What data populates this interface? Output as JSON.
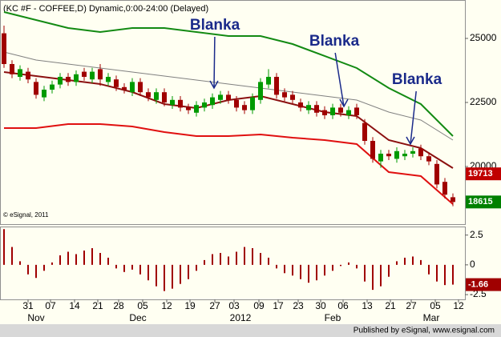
{
  "chart_data": [
    {
      "type": "candlestick",
      "title": "(KC #F - COFFEE,D) Dynamic,0:00-24:00 (Delayed)",
      "watermark": "© eSignal, 2011",
      "x": [
        0,
        1,
        2,
        3,
        4,
        5,
        6,
        7,
        8,
        9,
        10,
        11,
        12,
        13,
        14,
        15,
        16,
        17,
        18,
        19,
        20,
        21,
        22,
        23,
        24,
        25,
        26,
        27,
        28,
        29,
        30,
        31,
        32,
        33,
        34,
        35,
        36,
        37,
        38,
        39,
        40,
        41,
        42,
        43,
        44,
        45,
        46,
        47,
        48,
        49,
        50,
        51,
        52,
        53,
        54,
        55,
        56
      ],
      "open": [
        25200,
        24000,
        23500,
        23700,
        23300,
        22700,
        23000,
        23200,
        23500,
        23300,
        23700,
        23400,
        23800,
        23300,
        23400,
        23100,
        22900,
        23300,
        22900,
        22600,
        22900,
        22400,
        22600,
        22300,
        22100,
        22300,
        22400,
        22600,
        22800,
        22600,
        22400,
        22200,
        22600,
        23200,
        23500,
        22900,
        22800,
        22500,
        22200,
        22400,
        22200,
        22000,
        22300,
        22000,
        22300,
        21700,
        21000,
        20200,
        20500,
        20300,
        20400,
        20500,
        20700,
        20400,
        20100,
        19400,
        18800
      ],
      "high": [
        25500,
        24150,
        23950,
        23850,
        23450,
        23150,
        23350,
        23650,
        23650,
        23750,
        23850,
        23850,
        24000,
        23650,
        23550,
        23250,
        23450,
        23450,
        23050,
        23050,
        23050,
        22750,
        22750,
        22450,
        22550,
        22650,
        22850,
        22950,
        22950,
        22750,
        22550,
        22850,
        23450,
        23800,
        23650,
        23050,
        22950,
        22650,
        22550,
        22550,
        22350,
        22450,
        22450,
        22350,
        22450,
        21850,
        21150,
        20650,
        20650,
        20750,
        20650,
        20750,
        20850,
        20550,
        20250,
        19550,
        18950
      ],
      "low": [
        23850,
        23450,
        23350,
        23250,
        22650,
        22550,
        22850,
        23050,
        23150,
        23150,
        23350,
        23250,
        23150,
        23150,
        22950,
        22850,
        22750,
        22750,
        22550,
        22450,
        22350,
        22250,
        22150,
        22050,
        21950,
        22150,
        22250,
        22450,
        22450,
        22150,
        22050,
        22050,
        22450,
        23050,
        22650,
        22550,
        22450,
        22150,
        22050,
        21950,
        21850,
        21850,
        21950,
        21850,
        21850,
        20850,
        20150,
        19950,
        20250,
        20150,
        20250,
        20350,
        20250,
        20050,
        19150,
        18750,
        18450
      ],
      "close": [
        24000,
        23600,
        23800,
        23400,
        22800,
        23000,
        23200,
        23500,
        23300,
        23600,
        23500,
        23700,
        23400,
        23500,
        23100,
        23000,
        23300,
        22900,
        22700,
        22900,
        22500,
        22600,
        22300,
        22200,
        22400,
        22500,
        22700,
        22800,
        22600,
        22300,
        22200,
        22700,
        23300,
        23500,
        22800,
        22700,
        22600,
        22300,
        22400,
        22100,
        22000,
        22300,
        22100,
        22200,
        22000,
        21000,
        20300,
        20500,
        20400,
        20600,
        20500,
        20600,
        20400,
        20200,
        19300,
        18900,
        18615
      ],
      "up_color": "#009a00",
      "down_color": "#a00000",
      "xlim": [
        -0.5,
        57.5
      ],
      "ylim": [
        17750,
        26500
      ],
      "yticks": [
        25000,
        22500,
        20000
      ],
      "lines": [
        {
          "color": "#138a13",
          "x": [
            0,
            4,
            8,
            12,
            16,
            20,
            24,
            28,
            32,
            36,
            40,
            44,
            48,
            52,
            56
          ],
          "values": [
            26031,
            25719,
            25406,
            25250,
            25406,
            25406,
            25250,
            25094,
            25094,
            24781,
            24313,
            23844,
            23063,
            22438,
            21188
          ]
        },
        {
          "color": "#808080",
          "x": [
            0,
            4,
            8,
            12,
            16,
            20,
            24,
            28,
            32,
            36,
            40,
            44,
            48,
            52,
            56
          ],
          "values": [
            24469,
            24156,
            24000,
            23844,
            23688,
            23531,
            23375,
            23219,
            23063,
            22906,
            22750,
            22594,
            22125,
            21813,
            21031
          ]
        },
        {
          "color": "#8b1010",
          "x": [
            0,
            4,
            8,
            12,
            16,
            20,
            24,
            28,
            32,
            36,
            40,
            44,
            48,
            52,
            56
          ],
          "values": [
            23688,
            23531,
            23375,
            23219,
            22906,
            22438,
            22281,
            22594,
            22750,
            22438,
            22125,
            21969,
            21031,
            20719,
            19938
          ]
        },
        {
          "color": "#e01010",
          "x": [
            0,
            4,
            8,
            12,
            16,
            20,
            24,
            28,
            32,
            36,
            40,
            44,
            48,
            52,
            56
          ],
          "values": [
            21500,
            21500,
            21656,
            21656,
            21563,
            21344,
            21188,
            21188,
            21250,
            21125,
            21031,
            20875,
            19781,
            19625,
            18531
          ]
        }
      ],
      "price_labels": [
        {
          "value": 19713,
          "color": "#c00000"
        },
        {
          "value": 18615,
          "color": "#008000"
        }
      ],
      "annotations": [
        "Blanka",
        "Blanka",
        "Blanka"
      ]
    },
    {
      "type": "bar",
      "x": [
        0,
        1,
        2,
        3,
        4,
        5,
        6,
        7,
        8,
        9,
        10,
        11,
        12,
        13,
        14,
        15,
        16,
        17,
        18,
        19,
        20,
        21,
        22,
        23,
        24,
        25,
        26,
        27,
        28,
        29,
        30,
        31,
        32,
        33,
        34,
        35,
        36,
        37,
        38,
        39,
        40,
        41,
        42,
        43,
        44,
        45,
        46,
        47,
        48,
        49,
        50,
        51,
        52,
        53,
        54,
        55,
        56
      ],
      "values": [
        3.0,
        1.5,
        0.3,
        -0.8,
        -1.1,
        -0.5,
        0.2,
        0.8,
        1.1,
        0.9,
        1.2,
        1.4,
        1.0,
        0.6,
        -0.3,
        -0.6,
        -0.4,
        -0.8,
        -1.3,
        -1.8,
        -2.2,
        -2.0,
        -1.6,
        -1.2,
        -0.5,
        0.4,
        0.9,
        1.0,
        0.7,
        1.1,
        1.5,
        1.4,
        1.0,
        0.6,
        -0.3,
        -0.7,
        -0.9,
        -1.2,
        -1.5,
        -1.3,
        -0.9,
        -0.5,
        -0.1,
        0.2,
        -0.3,
        -1.4,
        -2.1,
        -1.8,
        -1.0,
        0.3,
        0.6,
        0.7,
        0.4,
        -0.8,
        -1.4,
        -1.7,
        -1.66
      ],
      "color": "#a00000",
      "xlim": [
        -0.5,
        57.5
      ],
      "ylim": [
        -2.9,
        3.15
      ],
      "yticks": [
        2.5,
        0,
        -2.5
      ],
      "xticks": [
        {
          "value": 3,
          "label": "31"
        },
        {
          "value": 5.8,
          "label": "07"
        },
        {
          "value": 8.8,
          "label": "14"
        },
        {
          "value": 11.7,
          "label": "21"
        },
        {
          "value": 14.3,
          "label": "28"
        },
        {
          "value": 17.3,
          "label": "05"
        },
        {
          "value": 20.3,
          "label": "12"
        },
        {
          "value": 23.2,
          "label": "19"
        },
        {
          "value": 26.3,
          "label": "27"
        },
        {
          "value": 28.7,
          "label": "03"
        },
        {
          "value": 31.8,
          "label": "09"
        },
        {
          "value": 34.2,
          "label": "17"
        },
        {
          "value": 36.7,
          "label": "23"
        },
        {
          "value": 39.5,
          "label": "30"
        },
        {
          "value": 42.3,
          "label": "06"
        },
        {
          "value": 45.3,
          "label": "13"
        },
        {
          "value": 48.2,
          "label": "21"
        },
        {
          "value": 50.8,
          "label": "27"
        },
        {
          "value": 53.8,
          "label": "05"
        },
        {
          "value": 56.7,
          "label": "12"
        }
      ],
      "month_labels": [
        {
          "value": 4,
          "label": "Nov"
        },
        {
          "value": 16.7,
          "label": "Dec"
        },
        {
          "value": 29.5,
          "label": "2012"
        },
        {
          "value": 41,
          "label": "Feb"
        },
        {
          "value": 53.3,
          "label": "Mar"
        }
      ],
      "price_labels": [
        {
          "value": -1.66,
          "color": "#a00000"
        }
      ]
    }
  ],
  "footer": "Published by eSignal, www.esignal.com"
}
